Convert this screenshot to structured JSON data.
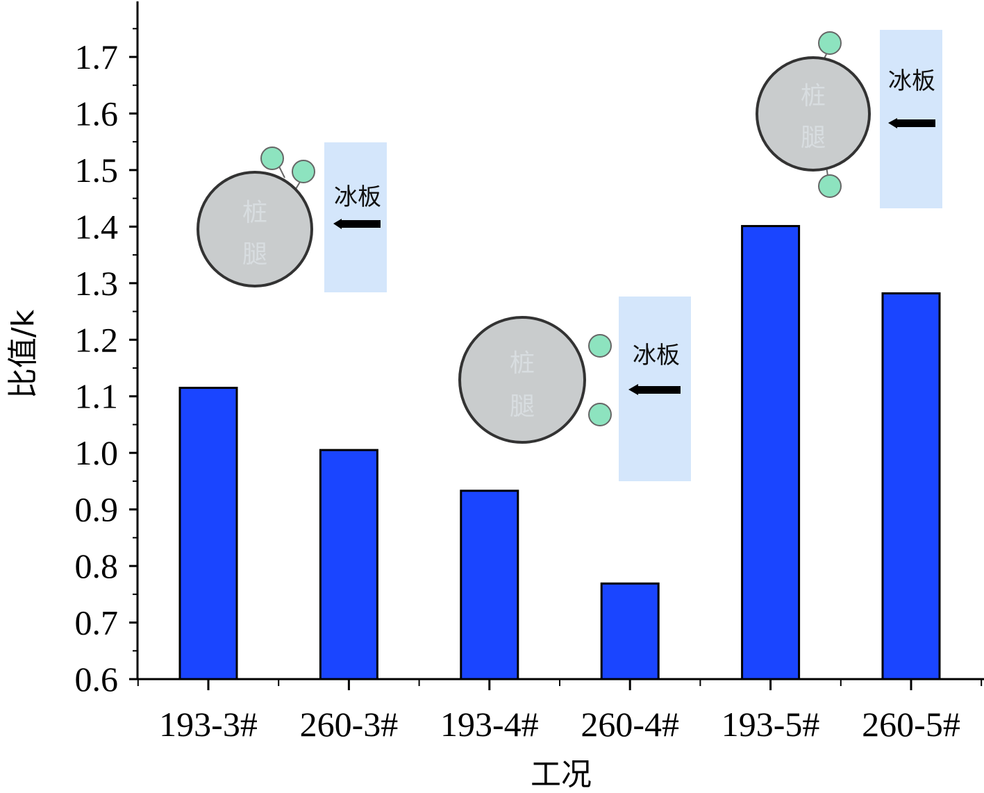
{
  "chart_data": {
    "type": "bar",
    "categories": [
      "193-3#",
      "260-3#",
      "193-4#",
      "260-4#",
      "193-5#",
      "260-5#"
    ],
    "values": [
      1.115,
      1.005,
      0.933,
      0.769,
      1.401,
      1.282
    ],
    "xlabel": "工况",
    "ylabel": "比值/k",
    "ylim": [
      0.6,
      1.8
    ],
    "yticks": [
      0.6,
      0.7,
      0.8,
      0.9,
      1.0,
      1.1,
      1.2,
      1.3,
      1.4,
      1.5,
      1.6,
      1.7
    ],
    "ytick_labels": [
      "0.6",
      "0.7",
      "0.8",
      "0.9",
      "1.0",
      "1.1",
      "1.2",
      "1.3",
      "1.4",
      "1.5",
      "1.6",
      "1.7"
    ],
    "bar_color": "#1a45ff",
    "insets": [
      {
        "id": "inset-3",
        "leg_label": "桩腿",
        "ice_label": "冰板",
        "sensors": 2
      },
      {
        "id": "inset-4",
        "leg_label": "桩腿",
        "ice_label": "冰板",
        "sensors": 2
      },
      {
        "id": "inset-5",
        "leg_label": "桩腿",
        "ice_label": "冰板",
        "sensors": 2
      }
    ]
  },
  "colors": {
    "bar": "#1a45ff",
    "leg_fill": "#c9cccd",
    "sensor_fill": "#8de3bf",
    "ice_fill": "#d4e6fb"
  }
}
